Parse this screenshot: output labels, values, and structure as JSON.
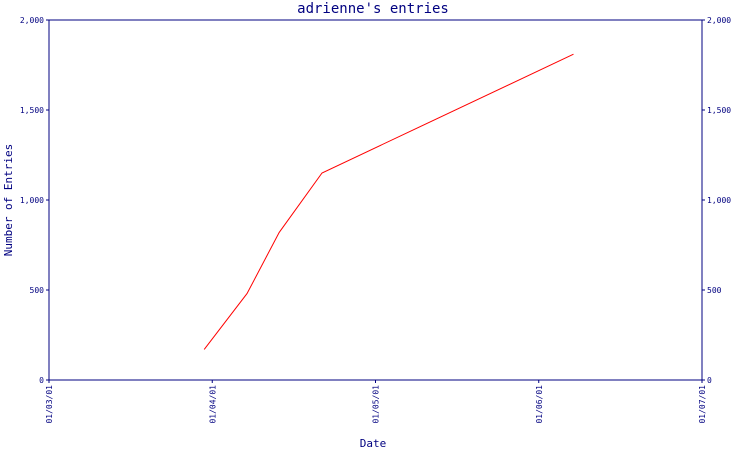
{
  "chart_data": {
    "type": "line",
    "title": "adrienne's entries",
    "xlabel": "Date",
    "ylabel": "Number of Entries",
    "x_tick_labels": [
      "01/03/01",
      "01/04/01",
      "01/05/01",
      "01/06/01",
      "01/07/01"
    ],
    "x_range": [
      "2001-03-01",
      "2001-07-01"
    ],
    "y_ticks": [
      0,
      500,
      1000,
      1500,
      2000
    ],
    "y_tick_labels": [
      "0",
      "500",
      "1,000",
      "1,500",
      "2,000"
    ],
    "ylim": [
      0,
      2000
    ],
    "grid": false,
    "series": [
      {
        "color": "#ff0000",
        "points": [
          {
            "x": "2001-03-30",
            "y": 170
          },
          {
            "x": "2001-04-07",
            "y": 480
          },
          {
            "x": "2001-04-13",
            "y": 820
          },
          {
            "x": "2001-04-21",
            "y": 1150
          },
          {
            "x": "2001-06-07",
            "y": 1810
          }
        ]
      }
    ]
  }
}
